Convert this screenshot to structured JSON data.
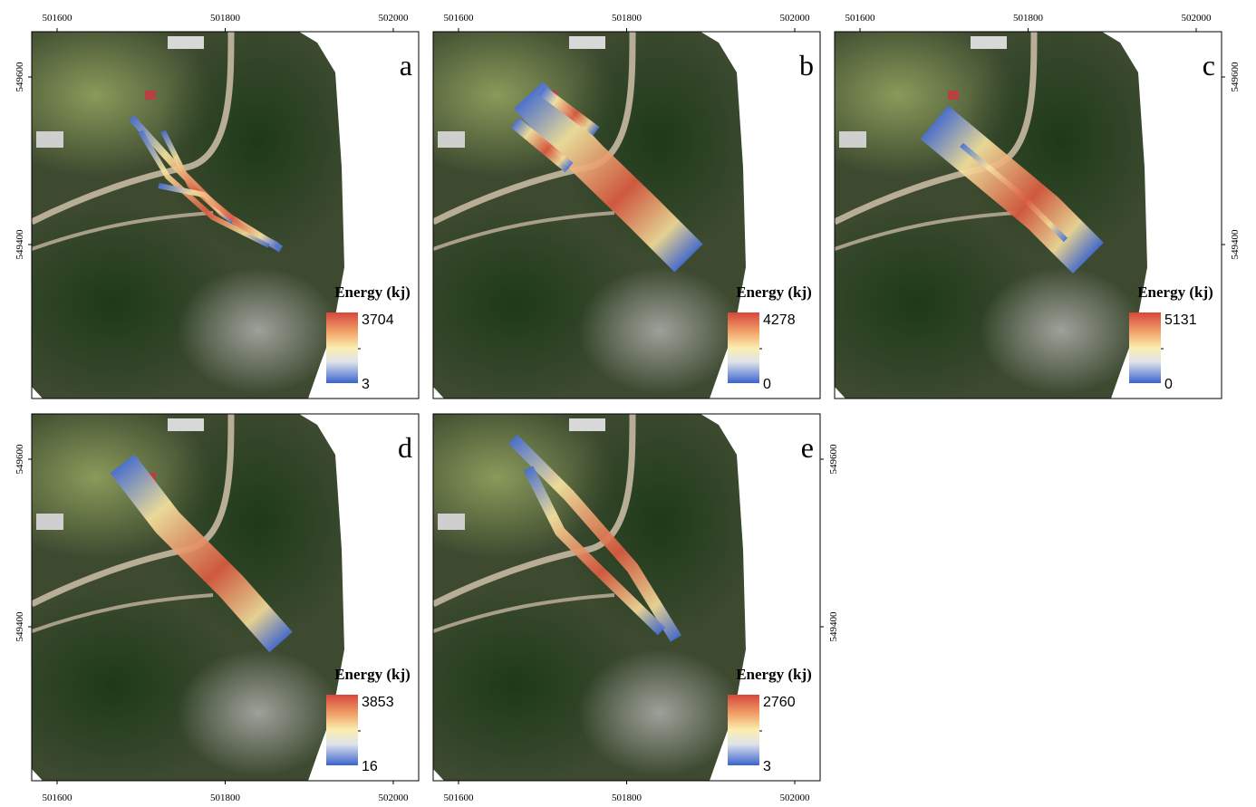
{
  "axes": {
    "x_ticks": [
      501600,
      501800,
      502000
    ],
    "y_ticks": [
      549600,
      549400
    ]
  },
  "panels": [
    {
      "label": "a",
      "legend": {
        "title": "Energy (kj)",
        "max": 3704,
        "min": 3
      }
    },
    {
      "label": "b",
      "legend": {
        "title": "Energy (kj)",
        "max": 4278,
        "min": 0
      }
    },
    {
      "label": "c",
      "legend": {
        "title": "Energy (kj)",
        "max": 5131,
        "min": 0
      }
    },
    {
      "label": "d",
      "legend": {
        "title": "Energy (kj)",
        "max": 3853,
        "min": 16
      }
    },
    {
      "label": "e",
      "legend": {
        "title": "Energy (kj)",
        "max": 2760,
        "min": 3
      }
    }
  ]
}
